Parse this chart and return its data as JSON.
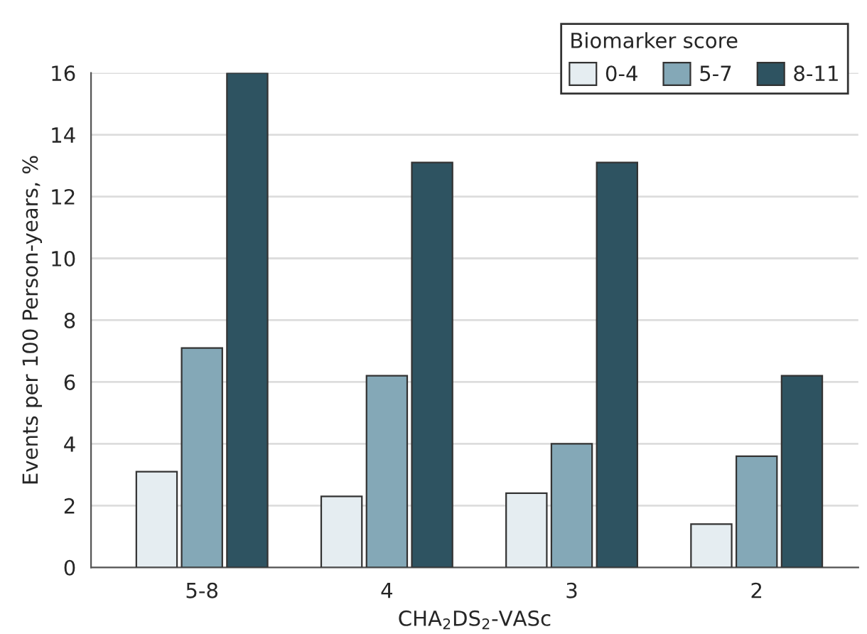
{
  "chart_data": {
    "type": "bar",
    "categories": [
      "5-8",
      "4",
      "3",
      "2"
    ],
    "series": [
      {
        "name": "0-4",
        "color": "#e5edf1",
        "values": [
          3.1,
          2.3,
          2.4,
          1.4
        ]
      },
      {
        "name": "5-7",
        "color": "#84a8b7",
        "values": [
          7.1,
          6.2,
          4.0,
          3.6
        ]
      },
      {
        "name": "8-11",
        "color": "#2e5361",
        "values": [
          16.0,
          13.1,
          13.1,
          6.2
        ]
      }
    ],
    "xlabel": "CHA$_{2}$DS$_{2}$-VASc",
    "ylabel": "Events per 100 Person-years, %",
    "legend_title": "Biomarker score",
    "legend": "top right",
    "ylim": [
      0,
      16
    ],
    "yticks": [
      0,
      2,
      4,
      6,
      8,
      10,
      12,
      14,
      16
    ],
    "grid": "y"
  }
}
